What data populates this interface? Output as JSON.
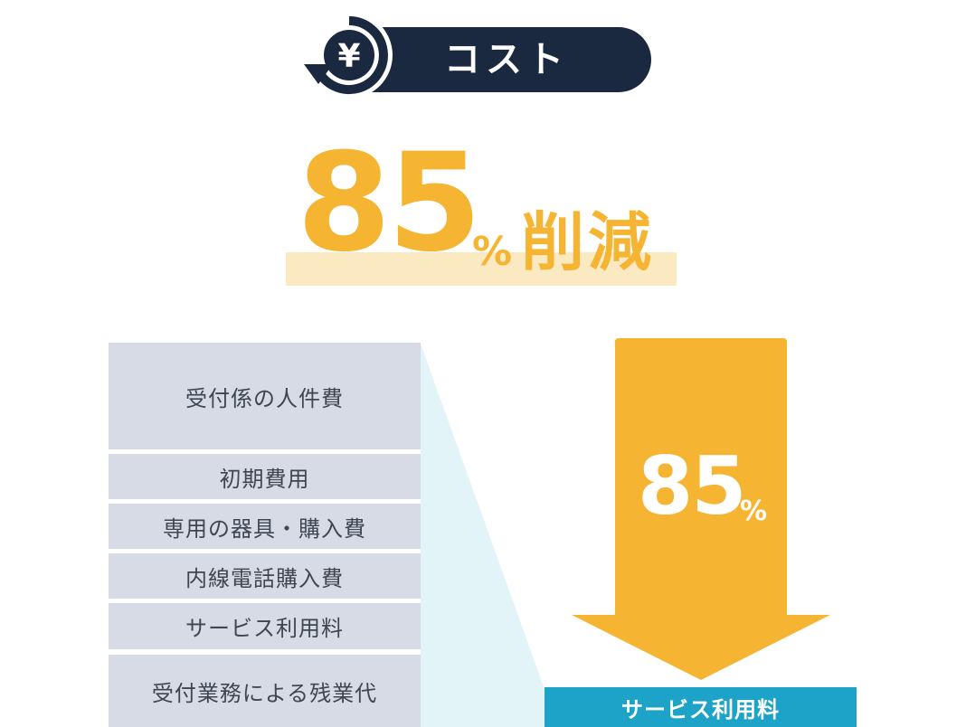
{
  "header": {
    "title": "コスト",
    "icon": "yen-reduction-icon",
    "pill_color": "#1a2940"
  },
  "headline": {
    "number": "85",
    "percent": "%",
    "word": "削減",
    "color": "#f5b532",
    "highlight_color": "#fbe9c2"
  },
  "cost_items": [
    "受付係の人件費",
    "初期費用",
    "専用の器具・購入費",
    "内線電話購入費",
    "サービス利用料",
    "受付業務による残業代"
  ],
  "arrow": {
    "number": "85",
    "percent": "%",
    "color": "#f5b532"
  },
  "result": {
    "label": "サービス利用料",
    "color": "#1da3c7"
  }
}
